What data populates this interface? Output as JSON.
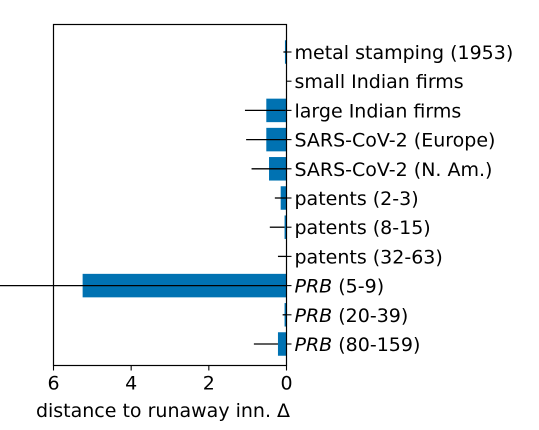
{
  "chart_data": {
    "type": "bar",
    "orientation": "horizontal",
    "x_axis_inverted": true,
    "title": "",
    "xlabel": "distance to runaway inn. Δ",
    "ylabel": "",
    "xlim": [
      6,
      0
    ],
    "xticks": [
      "6",
      "4",
      "2",
      "0"
    ],
    "grid": false,
    "legend": false,
    "bar_color": "#0072b2",
    "error_color": "#000000",
    "categories": [
      {
        "pre": "",
        "italic": "",
        "post": "metal stamping (1953)"
      },
      {
        "pre": "",
        "italic": "",
        "post": "small Indian firms"
      },
      {
        "pre": "",
        "italic": "",
        "post": "large Indian firms"
      },
      {
        "pre": "",
        "italic": "",
        "post": "SARS-CoV-2 (Europe)"
      },
      {
        "pre": "",
        "italic": "",
        "post": "SARS-CoV-2 (N. Am.)"
      },
      {
        "pre": "",
        "italic": "",
        "post": "patents (2-3)"
      },
      {
        "pre": "",
        "italic": "",
        "post": "patents (8-15)"
      },
      {
        "pre": "",
        "italic": "",
        "post": "patents (32-63)"
      },
      {
        "pre": "",
        "italic": "PRB",
        "post": " (5-9)"
      },
      {
        "pre": "",
        "italic": "PRB",
        "post": " (20-39)"
      },
      {
        "pre": "",
        "italic": "PRB",
        "post": " (80-159)"
      }
    ],
    "values": [
      0.04,
      0.0,
      0.52,
      0.52,
      0.45,
      0.15,
      0.05,
      0.0,
      5.25,
      0.05,
      0.22
    ],
    "error_low": [
      0.04,
      0.0,
      0.55,
      0.52,
      0.45,
      0.15,
      0.38,
      0.22,
      2.8,
      0.05,
      0.62
    ],
    "error_high": [
      0.04,
      0.0,
      0.5,
      0.52,
      0.45,
      0.15,
      0.0,
      0.0,
      5.25,
      0.05,
      0.0
    ]
  }
}
